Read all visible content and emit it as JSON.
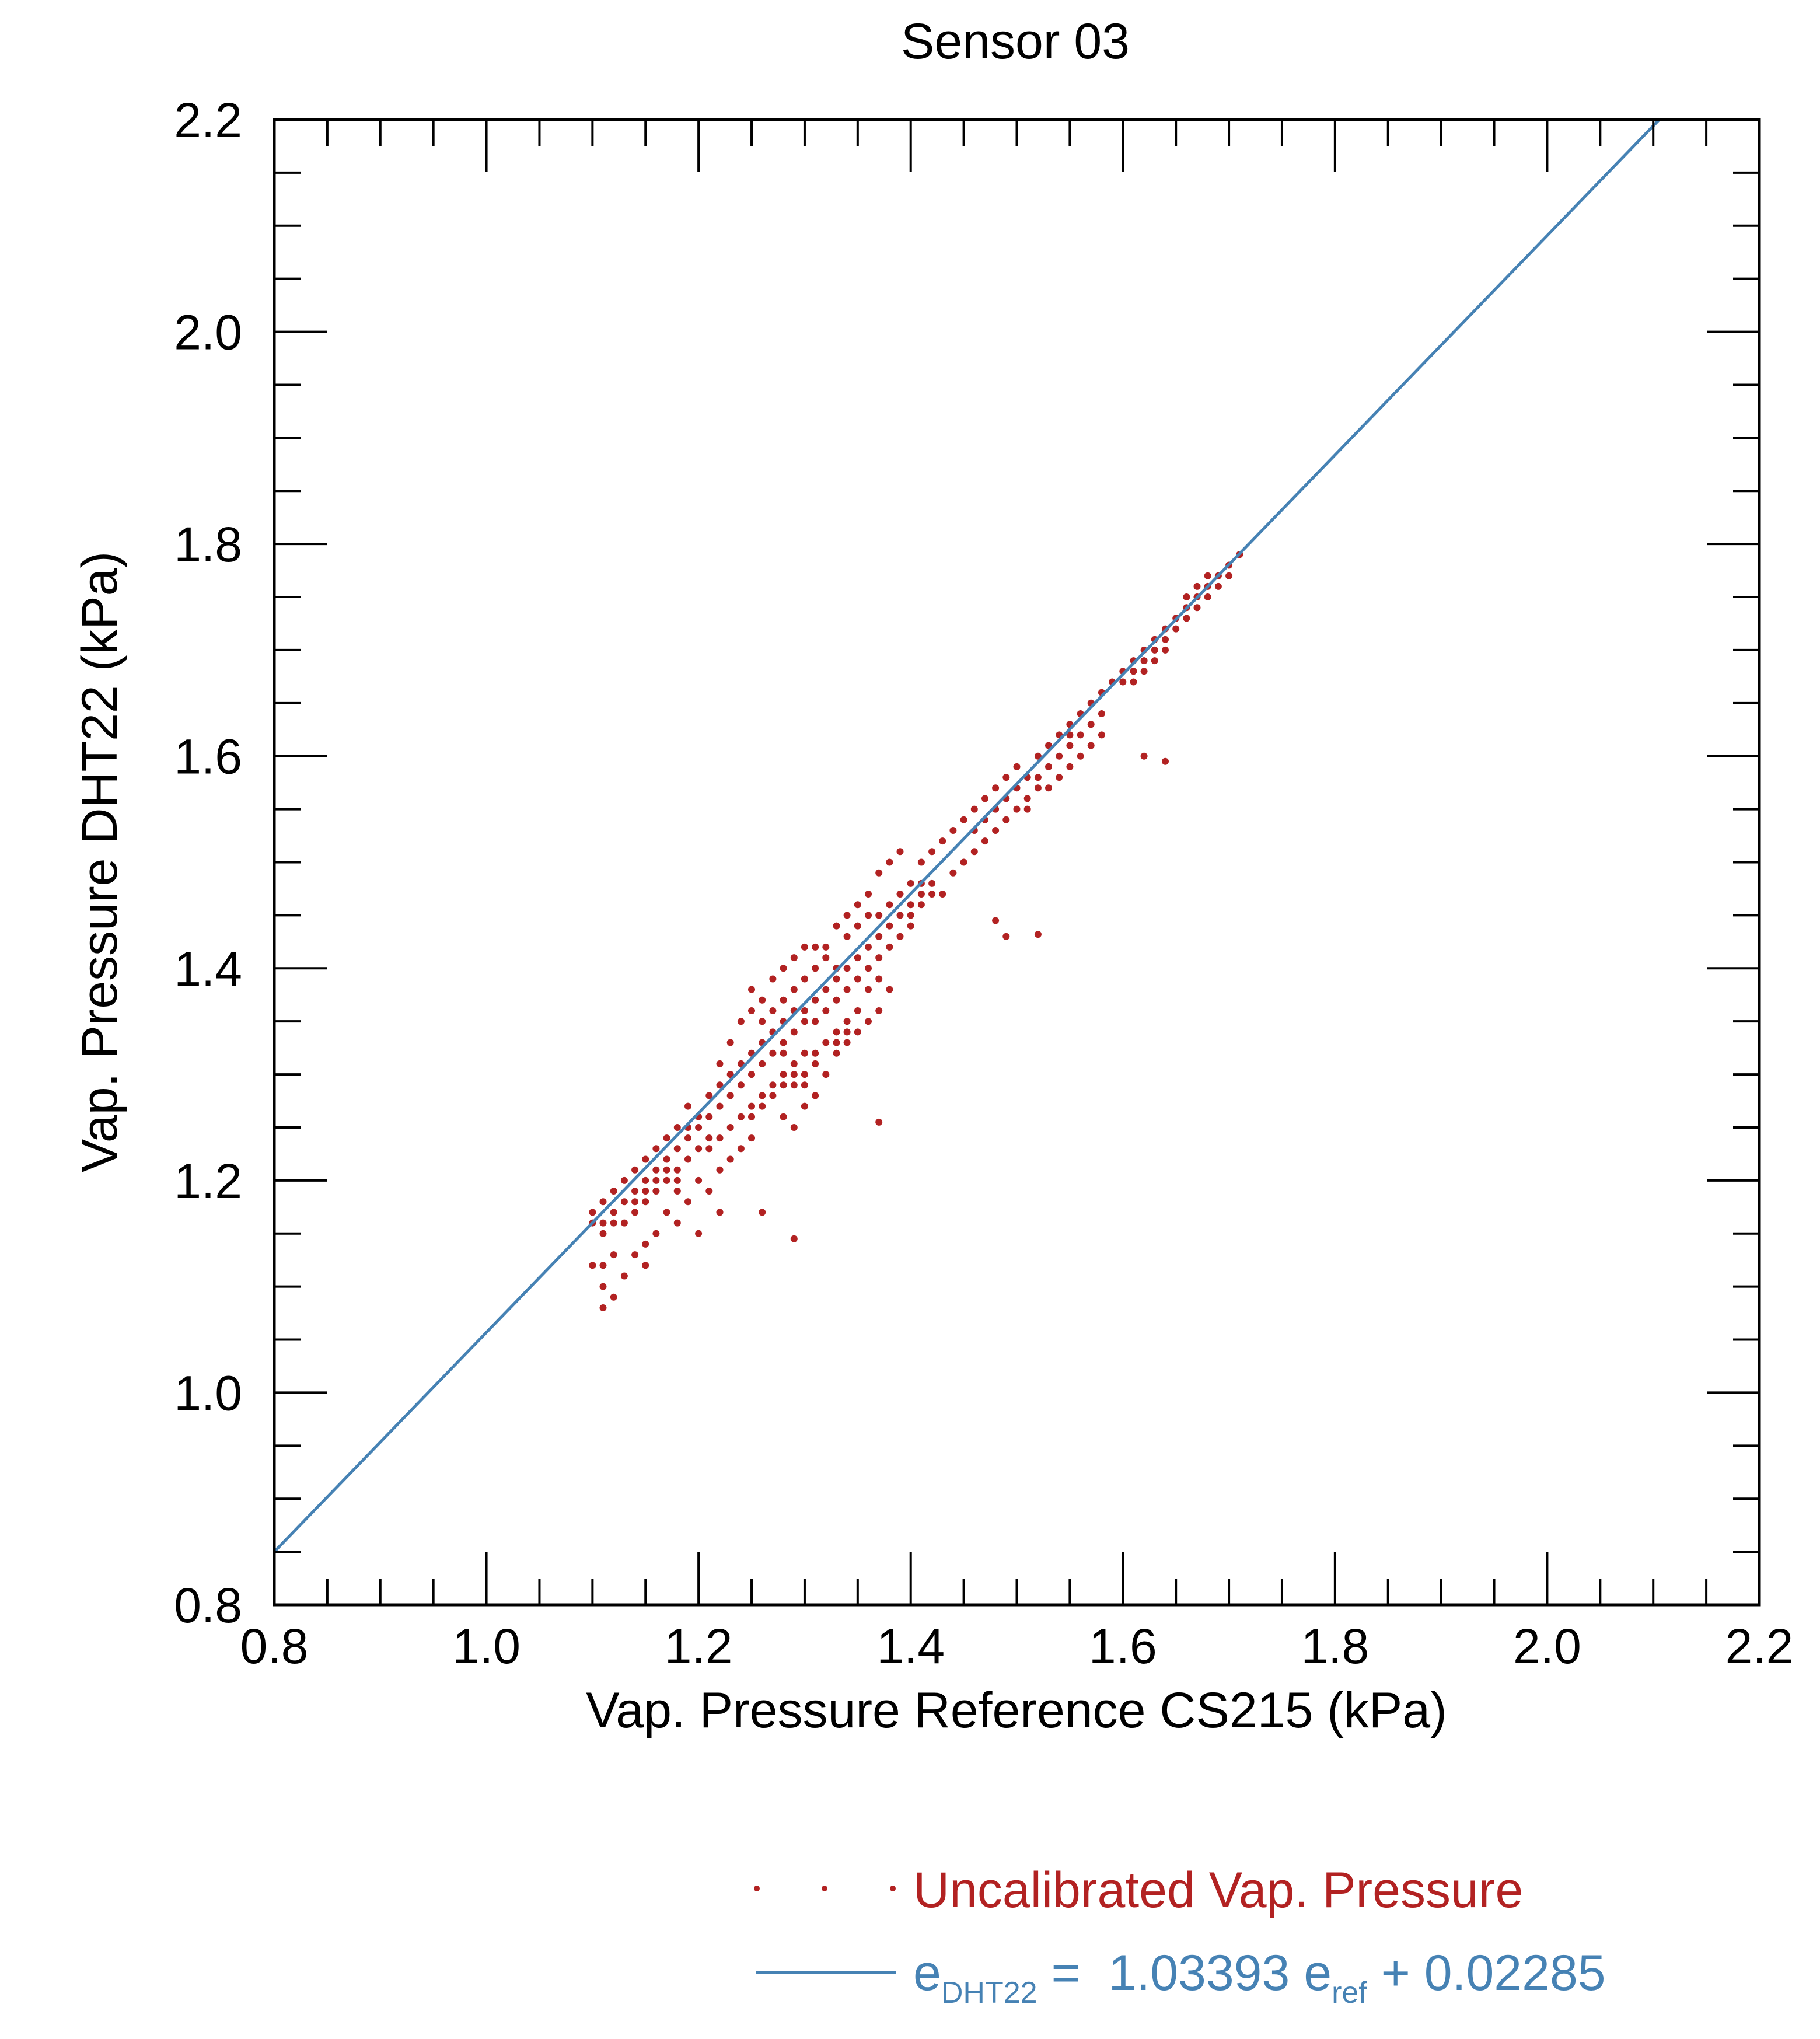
{
  "chart_data": {
    "type": "scatter",
    "title": "Sensor 03",
    "xlabel": "Vap. Pressure Reference CS215 (kPa)",
    "ylabel": "Vap. Pressure DHT22 (kPa)",
    "xlim": [
      0.8,
      2.2
    ],
    "ylim": [
      0.8,
      2.2
    ],
    "x_ticks": [
      "0.8",
      "1.0",
      "1.2",
      "1.4",
      "1.6",
      "1.8",
      "2.0",
      "2.2"
    ],
    "y_ticks": [
      "0.8",
      "1.0",
      "1.2",
      "1.4",
      "1.6",
      "1.8",
      "2.0",
      "2.2"
    ],
    "grid": false,
    "legend_position": "bottom-right",
    "colors": {
      "points": "#b22222",
      "fit": "#4682b4"
    },
    "series": [
      {
        "name": "Uncalibrated Vap. Pressure",
        "kind": "scatter",
        "points": [
          [
            1.1,
            1.17
          ],
          [
            1.11,
            1.16
          ],
          [
            1.11,
            1.18
          ],
          [
            1.12,
            1.17
          ],
          [
            1.12,
            1.19
          ],
          [
            1.13,
            1.18
          ],
          [
            1.13,
            1.2
          ],
          [
            1.14,
            1.19
          ],
          [
            1.14,
            1.21
          ],
          [
            1.15,
            1.2
          ],
          [
            1.15,
            1.22
          ],
          [
            1.16,
            1.21
          ],
          [
            1.16,
            1.23
          ],
          [
            1.17,
            1.22
          ],
          [
            1.17,
            1.24
          ],
          [
            1.18,
            1.23
          ],
          [
            1.18,
            1.25
          ],
          [
            1.19,
            1.25
          ],
          [
            1.19,
            1.27
          ],
          [
            1.2,
            1.26
          ],
          [
            1.11,
            1.15
          ],
          [
            1.12,
            1.16
          ],
          [
            1.13,
            1.16
          ],
          [
            1.14,
            1.17
          ],
          [
            1.15,
            1.18
          ],
          [
            1.16,
            1.19
          ],
          [
            1.17,
            1.2
          ],
          [
            1.12,
            1.13
          ],
          [
            1.11,
            1.12
          ],
          [
            1.1,
            1.16
          ],
          [
            1.1,
            1.12
          ],
          [
            1.11,
            1.1
          ],
          [
            1.12,
            1.09
          ],
          [
            1.11,
            1.08
          ],
          [
            1.13,
            1.11
          ],
          [
            1.15,
            1.14
          ],
          [
            1.14,
            1.13
          ],
          [
            1.16,
            1.15
          ],
          [
            1.18,
            1.16
          ],
          [
            1.17,
            1.17
          ],
          [
            1.2,
            1.25
          ],
          [
            1.21,
            1.26
          ],
          [
            1.21,
            1.28
          ],
          [
            1.22,
            1.27
          ],
          [
            1.22,
            1.29
          ],
          [
            1.23,
            1.28
          ],
          [
            1.23,
            1.3
          ],
          [
            1.24,
            1.29
          ],
          [
            1.24,
            1.31
          ],
          [
            1.25,
            1.3
          ],
          [
            1.25,
            1.32
          ],
          [
            1.26,
            1.31
          ],
          [
            1.26,
            1.33
          ],
          [
            1.27,
            1.32
          ],
          [
            1.27,
            1.34
          ],
          [
            1.28,
            1.33
          ],
          [
            1.28,
            1.35
          ],
          [
            1.29,
            1.34
          ],
          [
            1.29,
            1.36
          ],
          [
            1.3,
            1.35
          ],
          [
            1.21,
            1.24
          ],
          [
            1.22,
            1.24
          ],
          [
            1.23,
            1.25
          ],
          [
            1.24,
            1.26
          ],
          [
            1.25,
            1.27
          ],
          [
            1.26,
            1.28
          ],
          [
            1.27,
            1.29
          ],
          [
            1.28,
            1.3
          ],
          [
            1.29,
            1.31
          ],
          [
            1.3,
            1.32
          ],
          [
            1.22,
            1.21
          ],
          [
            1.23,
            1.22
          ],
          [
            1.2,
            1.2
          ],
          [
            1.21,
            1.19
          ],
          [
            1.24,
            1.23
          ],
          [
            1.25,
            1.24
          ],
          [
            1.19,
            1.18
          ],
          [
            1.18,
            1.21
          ],
          [
            1.22,
            1.17
          ],
          [
            1.2,
            1.15
          ],
          [
            1.22,
            1.31
          ],
          [
            1.23,
            1.33
          ],
          [
            1.24,
            1.35
          ],
          [
            1.25,
            1.36
          ],
          [
            1.25,
            1.38
          ],
          [
            1.26,
            1.37
          ],
          [
            1.27,
            1.39
          ],
          [
            1.28,
            1.4
          ],
          [
            1.29,
            1.41
          ],
          [
            1.3,
            1.42
          ],
          [
            1.28,
            1.32
          ],
          [
            1.29,
            1.3
          ],
          [
            1.3,
            1.29
          ],
          [
            1.31,
            1.31
          ],
          [
            1.32,
            1.3
          ],
          [
            1.31,
            1.28
          ],
          [
            1.33,
            1.32
          ],
          [
            1.3,
            1.27
          ],
          [
            1.28,
            1.26
          ],
          [
            1.29,
            1.25
          ],
          [
            1.3,
            1.36
          ],
          [
            1.31,
            1.37
          ],
          [
            1.32,
            1.38
          ],
          [
            1.33,
            1.39
          ],
          [
            1.34,
            1.4
          ],
          [
            1.35,
            1.41
          ],
          [
            1.36,
            1.42
          ],
          [
            1.37,
            1.43
          ],
          [
            1.38,
            1.44
          ],
          [
            1.39,
            1.45
          ],
          [
            1.31,
            1.35
          ],
          [
            1.32,
            1.36
          ],
          [
            1.33,
            1.37
          ],
          [
            1.34,
            1.38
          ],
          [
            1.35,
            1.39
          ],
          [
            1.36,
            1.4
          ],
          [
            1.37,
            1.41
          ],
          [
            1.38,
            1.42
          ],
          [
            1.39,
            1.43
          ],
          [
            1.4,
            1.44
          ],
          [
            1.32,
            1.42
          ],
          [
            1.33,
            1.44
          ],
          [
            1.34,
            1.45
          ],
          [
            1.35,
            1.46
          ],
          [
            1.36,
            1.47
          ],
          [
            1.37,
            1.49
          ],
          [
            1.38,
            1.5
          ],
          [
            1.39,
            1.51
          ],
          [
            1.34,
            1.43
          ],
          [
            1.36,
            1.45
          ],
          [
            1.33,
            1.34
          ],
          [
            1.34,
            1.35
          ],
          [
            1.35,
            1.36
          ],
          [
            1.36,
            1.38
          ],
          [
            1.37,
            1.39
          ],
          [
            1.34,
            1.33
          ],
          [
            1.35,
            1.34
          ],
          [
            1.36,
            1.35
          ],
          [
            1.37,
            1.36
          ],
          [
            1.38,
            1.38
          ],
          [
            1.4,
            1.46
          ],
          [
            1.41,
            1.47
          ],
          [
            1.42,
            1.48
          ],
          [
            1.4,
            1.45
          ],
          [
            1.41,
            1.46
          ],
          [
            1.39,
            1.47
          ],
          [
            1.38,
            1.46
          ],
          [
            1.37,
            1.45
          ],
          [
            1.42,
            1.47
          ],
          [
            1.41,
            1.48
          ],
          [
            1.4,
            1.48
          ],
          [
            1.41,
            1.5
          ],
          [
            1.42,
            1.51
          ],
          [
            1.43,
            1.52
          ],
          [
            1.44,
            1.53
          ],
          [
            1.45,
            1.54
          ],
          [
            1.46,
            1.55
          ],
          [
            1.47,
            1.56
          ],
          [
            1.48,
            1.57
          ],
          [
            1.49,
            1.58
          ],
          [
            1.5,
            1.59
          ],
          [
            1.51,
            1.58
          ],
          [
            1.52,
            1.6
          ],
          [
            1.53,
            1.61
          ],
          [
            1.54,
            1.62
          ],
          [
            1.55,
            1.63
          ],
          [
            1.56,
            1.64
          ],
          [
            1.57,
            1.65
          ],
          [
            1.58,
            1.66
          ],
          [
            1.59,
            1.67
          ],
          [
            1.46,
            1.53
          ],
          [
            1.47,
            1.54
          ],
          [
            1.48,
            1.55
          ],
          [
            1.49,
            1.56
          ],
          [
            1.5,
            1.57
          ],
          [
            1.51,
            1.56
          ],
          [
            1.52,
            1.58
          ],
          [
            1.53,
            1.59
          ],
          [
            1.54,
            1.6
          ],
          [
            1.55,
            1.61
          ],
          [
            1.6,
            1.68
          ],
          [
            1.61,
            1.69
          ],
          [
            1.62,
            1.7
          ],
          [
            1.63,
            1.71
          ],
          [
            1.64,
            1.72
          ],
          [
            1.65,
            1.73
          ],
          [
            1.66,
            1.74
          ],
          [
            1.67,
            1.75
          ],
          [
            1.68,
            1.76
          ],
          [
            1.69,
            1.77
          ],
          [
            1.6,
            1.67
          ],
          [
            1.61,
            1.67
          ],
          [
            1.62,
            1.68
          ],
          [
            1.63,
            1.7
          ],
          [
            1.64,
            1.71
          ],
          [
            1.65,
            1.72
          ],
          [
            1.66,
            1.73
          ],
          [
            1.67,
            1.74
          ],
          [
            1.68,
            1.75
          ],
          [
            1.7,
            1.78
          ],
          [
            1.71,
            1.79
          ],
          [
            1.7,
            1.77
          ],
          [
            1.69,
            1.76
          ],
          [
            1.62,
            1.69
          ],
          [
            1.61,
            1.68
          ],
          [
            1.63,
            1.69
          ],
          [
            1.64,
            1.7
          ],
          [
            1.66,
            1.75
          ],
          [
            1.67,
            1.76
          ],
          [
            1.68,
            1.77
          ],
          [
            1.62,
            1.6
          ],
          [
            1.64,
            1.595
          ],
          [
            1.48,
            1.445
          ],
          [
            1.49,
            1.43
          ],
          [
            1.52,
            1.432
          ],
          [
            1.37,
            1.255
          ],
          [
            1.29,
            1.145
          ],
          [
            1.26,
            1.17
          ],
          [
            1.22,
            1.17
          ],
          [
            1.15,
            1.12
          ],
          [
            1.18,
            1.19
          ],
          [
            1.19,
            1.22
          ],
          [
            1.2,
            1.23
          ],
          [
            1.21,
            1.23
          ],
          [
            1.19,
            1.24
          ],
          [
            1.18,
            1.2
          ],
          [
            1.17,
            1.21
          ],
          [
            1.16,
            1.2
          ],
          [
            1.15,
            1.19
          ],
          [
            1.14,
            1.18
          ],
          [
            1.26,
            1.35
          ],
          [
            1.27,
            1.36
          ],
          [
            1.28,
            1.37
          ],
          [
            1.29,
            1.38
          ],
          [
            1.3,
            1.39
          ],
          [
            1.31,
            1.4
          ],
          [
            1.32,
            1.41
          ],
          [
            1.33,
            1.4
          ],
          [
            1.31,
            1.42
          ],
          [
            1.35,
            1.44
          ],
          [
            1.25,
            1.26
          ],
          [
            1.26,
            1.27
          ],
          [
            1.27,
            1.28
          ],
          [
            1.28,
            1.29
          ],
          [
            1.29,
            1.29
          ],
          [
            1.3,
            1.3
          ],
          [
            1.31,
            1.32
          ],
          [
            1.32,
            1.33
          ],
          [
            1.33,
            1.33
          ],
          [
            1.34,
            1.34
          ],
          [
            1.43,
            1.47
          ],
          [
            1.44,
            1.49
          ],
          [
            1.45,
            1.5
          ],
          [
            1.46,
            1.51
          ],
          [
            1.47,
            1.52
          ],
          [
            1.48,
            1.53
          ],
          [
            1.49,
            1.54
          ],
          [
            1.5,
            1.55
          ],
          [
            1.51,
            1.55
          ],
          [
            1.52,
            1.57
          ],
          [
            1.53,
            1.57
          ],
          [
            1.54,
            1.58
          ],
          [
            1.55,
            1.59
          ],
          [
            1.56,
            1.6
          ],
          [
            1.57,
            1.61
          ],
          [
            1.58,
            1.62
          ],
          [
            1.57,
            1.63
          ],
          [
            1.56,
            1.62
          ],
          [
            1.55,
            1.62
          ],
          [
            1.58,
            1.64
          ]
        ]
      },
      {
        "name": "e_DHT22 = 1.03393 e_ref + 0.02285",
        "kind": "line",
        "slope": 1.03393,
        "intercept": 0.02285,
        "x_range": [
          0.8,
          2.2
        ]
      }
    ],
    "legend": [
      {
        "label": "Uncalibrated Vap. Pressure"
      },
      {
        "label_parts": {
          "e1": "e",
          "sub1": "DHT22",
          "eq": " =  1.03393 e",
          "sub2": "ref",
          "tail": " + 0.02285"
        }
      }
    ]
  }
}
